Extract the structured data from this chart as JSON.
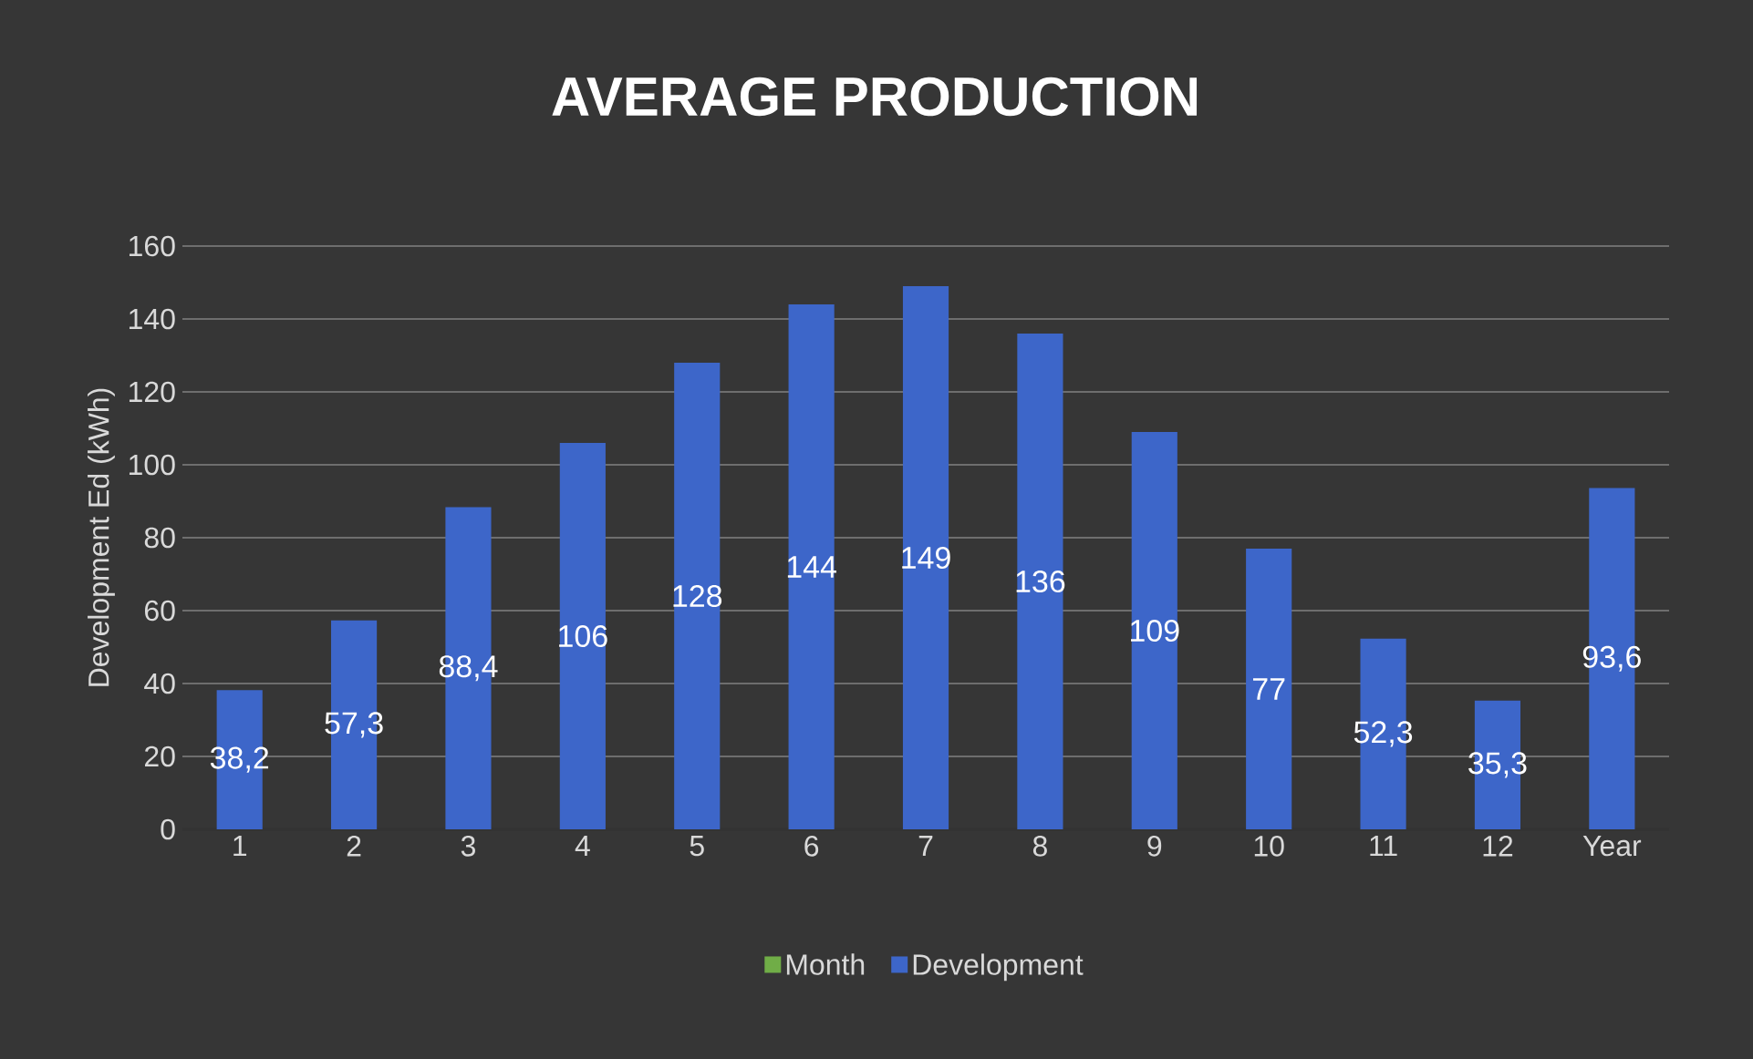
{
  "chart_data": {
    "type": "bar",
    "title": "AVERAGE PRODUCTION",
    "ylabel": "Development Ed (kWh)",
    "categories": [
      "1",
      "2",
      "3",
      "4",
      "5",
      "6",
      "7",
      "8",
      "9",
      "10",
      "11",
      "12",
      "Year"
    ],
    "series": [
      {
        "name": "Month",
        "color": "#70ad47",
        "values": [
          null,
          null,
          null,
          null,
          null,
          null,
          null,
          null,
          null,
          null,
          null,
          null,
          null
        ]
      },
      {
        "name": "Development",
        "color": "#3d66c9",
        "values": [
          38.2,
          57.3,
          88.4,
          106,
          128,
          144,
          149,
          136,
          109,
          77,
          52.3,
          35.3,
          93.6
        ],
        "value_labels": [
          "38,2",
          "57,3",
          "88,4",
          "106",
          "128",
          "144",
          "149",
          "136",
          "109",
          "77",
          "52,3",
          "35,3",
          "93,6"
        ]
      }
    ],
    "ylim": [
      0,
      160
    ],
    "yticks": [
      0,
      20,
      40,
      60,
      80,
      100,
      120,
      140,
      160
    ],
    "grid": "y",
    "legend": "bottom"
  }
}
